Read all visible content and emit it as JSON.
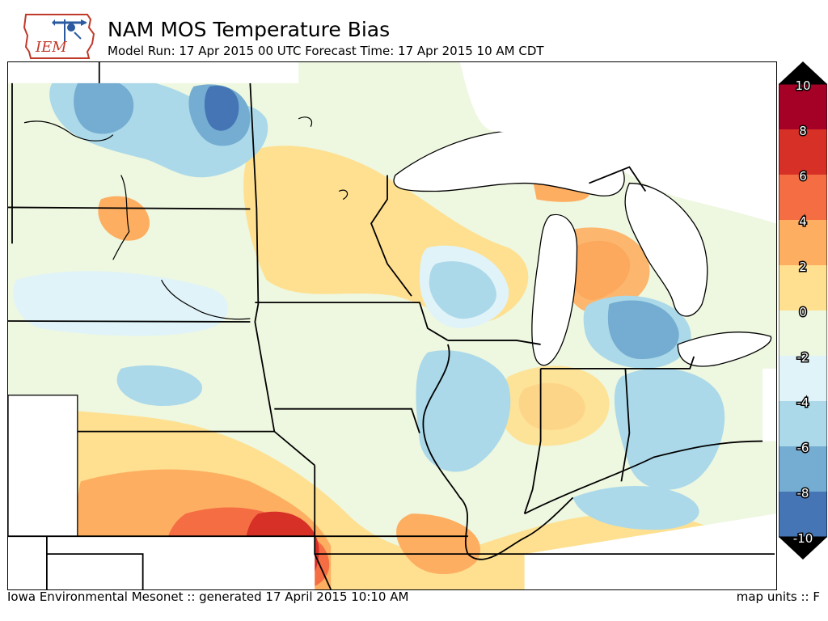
{
  "header": {
    "logo_text": "IEM",
    "title": "NAM MOS Temperature Bias",
    "subtitle": "Model Run: 17 Apr 2015 00 UTC Forecast Time: 17 Apr 2015 10 AM CDT"
  },
  "footer": {
    "credit": "Iowa Environmental Mesonet :: generated 17 April 2015 10:10 AM",
    "units": "map units :: F"
  },
  "colorbar": {
    "labels": [
      "10",
      "8",
      "6",
      "4",
      "2",
      "0",
      "-2",
      "-4",
      "-6",
      "-8",
      "-10"
    ],
    "colors": [
      "#a50026",
      "#d73027",
      "#f46d43",
      "#fdae61",
      "#fee090",
      "#ffffbf",
      "#e0f3f8",
      "#abd9e9",
      "#74add1",
      "#4575b4",
      "#313695"
    ],
    "over_color": "#000000",
    "under_color": "#000000"
  },
  "legend_colors": {
    "bias_-8": "#4575b4",
    "bias_-6": "#74add1",
    "bias_-4": "#abd9e9",
    "bias_-2": "#e0f3f8",
    "bias_0": "#eef7e0",
    "bias_2": "#fee090",
    "bias_4": "#fdae61",
    "bias_6": "#f46d43",
    "bias_8": "#d73027"
  }
}
